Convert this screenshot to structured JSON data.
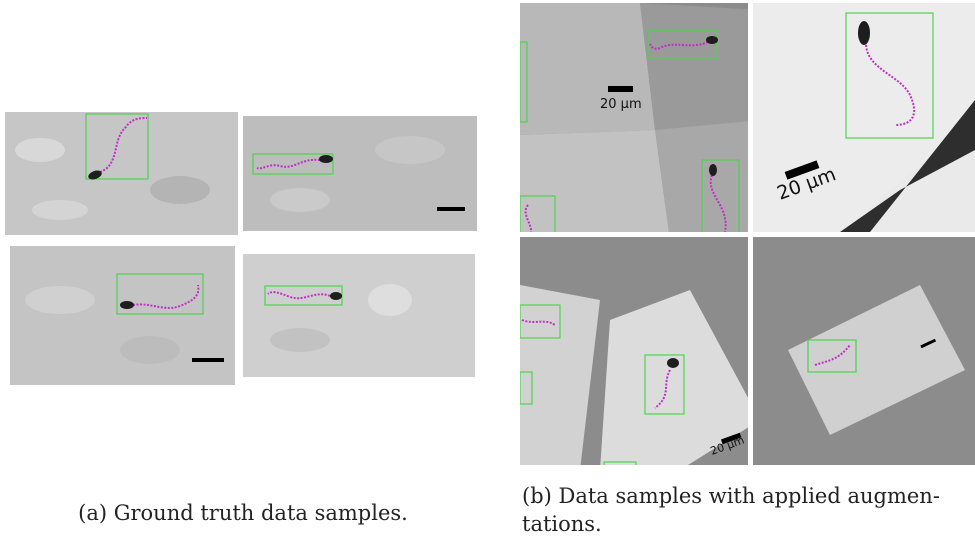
{
  "figure": {
    "captions": {
      "a": [
        "(a) Ground truth data samples."
      ],
      "b": [
        "(b) Data samples with applied augmen-",
        "tations."
      ]
    },
    "scale_labels": [
      "20 µm",
      "20 µm",
      "20 µm"
    ]
  }
}
